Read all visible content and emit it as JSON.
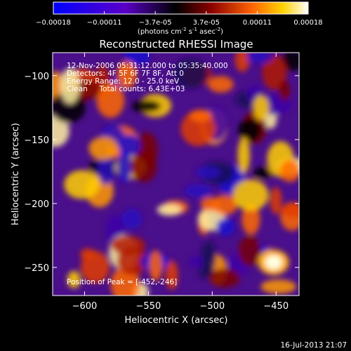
{
  "colorbar": {
    "tick_labels": [
      "-0.00018",
      "-0.00011",
      "-3.7e-05",
      "3.7e-05",
      "0.00011",
      "0.00018"
    ],
    "units_prefix": "(photons cm",
    "units_sup1": "-2",
    "units_mid": " s",
    "units_sup2": "-1",
    "units_suffix": " asec",
    "units_sup3": "-2",
    "units_close": ")"
  },
  "colors": {
    "background": "#000000",
    "text": "#ffffff",
    "colormap": [
      "#0000ff",
      "#5a00c8",
      "#000000",
      "#8c0000",
      "#ff6400",
      "#ffd200",
      "#ffffff"
    ]
  },
  "chart_data": {
    "type": "heatmap",
    "title": "Reconstructed RHESSI Image",
    "xlabel": "Heliocentric X (arcsec)",
    "ylabel": "Heliocentric Y (arcsec)",
    "xlim": [
      -625,
      -432
    ],
    "ylim": [
      -272,
      -82
    ],
    "xticks": [
      -600,
      -550,
      -500,
      -450
    ],
    "yticks": [
      -100,
      -150,
      -200,
      -250
    ],
    "color_range": [
      -0.00018,
      0.00018
    ],
    "annotations": [
      "12-Nov-2006 05:31:12.000 to 05:35:40.000",
      "Detectors: 4F 5F 6F 7F 8F, Att 0",
      "Energy Range: 12.0 - 25.0 keV",
      "Clean     Total counts: 6.43E+03"
    ],
    "peak_label": "Position of Peak = [-452,-246]",
    "peak_position": [
      -452,
      -246
    ]
  },
  "footer": {
    "timestamp": "16-Jul-2013 21:07"
  }
}
